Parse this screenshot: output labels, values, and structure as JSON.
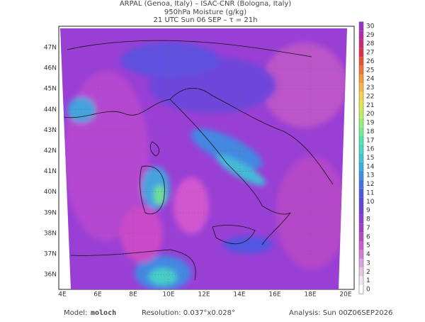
{
  "header": {
    "line1": "ARPAL (Genoa, Italy)  –  ISAC-CNR (Bologna, Italy)",
    "line2": "950hPa Moisture (g/kg)",
    "line3": "21 UTC Sun 06 SEP  –  τ = 21h"
  },
  "map": {
    "lat_labels": [
      "47N",
      "46N",
      "45N",
      "44N",
      "43N",
      "42N",
      "41N",
      "40N",
      "39N",
      "38N",
      "37N",
      "36N"
    ],
    "lon_labels": [
      "4E",
      "6E",
      "8E",
      "10E",
      "12E",
      "14E",
      "16E",
      "18E",
      "20E"
    ]
  },
  "colorbar": {
    "ticks": [
      0,
      1,
      2,
      3,
      4,
      5,
      6,
      7,
      8,
      9,
      10,
      11,
      12,
      13,
      14,
      15,
      16,
      17,
      18,
      19,
      20,
      21,
      22,
      23,
      24,
      25,
      26,
      27,
      28,
      29,
      30
    ],
    "colors": [
      "#ffffff",
      "#f2e6f2",
      "#e6c8e6",
      "#d9a6e0",
      "#d47ad8",
      "#c95ccf",
      "#b844c8",
      "#a23ad0",
      "#8c3ad8",
      "#7040dc",
      "#5a48e0",
      "#4a5ae4",
      "#3c74e6",
      "#3a90e4",
      "#3aaee0",
      "#3ac8d8",
      "#40dcc4",
      "#50e8a8",
      "#70f08c",
      "#98f074",
      "#c0ee60",
      "#e0e650",
      "#f4d448",
      "#f8b840",
      "#f89838",
      "#f47434",
      "#ec5030",
      "#e03048",
      "#d02878",
      "#b828a8",
      "#9a30d0"
    ]
  },
  "footer": {
    "model_label": "Model:",
    "model": "moloch",
    "resolution": "Resolution: 0.037°x0.028°",
    "analysis": "Analysis: Sun 00Z06SEP2026"
  }
}
